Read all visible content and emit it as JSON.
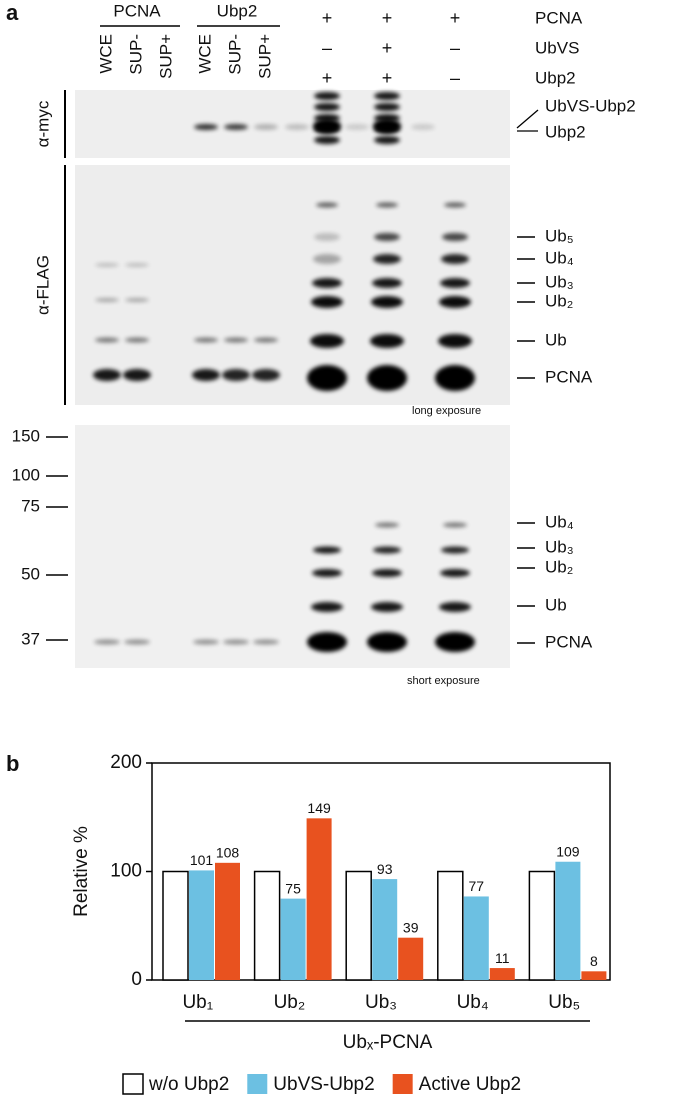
{
  "panel_a": {
    "label": "a",
    "group_headers": [
      "PCNA",
      "Ubp2"
    ],
    "lanes": [
      "WCE",
      "SUP-",
      "SUP+",
      "WCE",
      "SUP-",
      "SUP+"
    ],
    "conditions": [
      {
        "name": "PCNA",
        "marks": [
          "+",
          "+",
          "+"
        ]
      },
      {
        "name": "UbVS",
        "marks": [
          "–",
          "+",
          "–"
        ]
      },
      {
        "name": "Ubp2",
        "marks": [
          "+",
          "+",
          "–"
        ]
      }
    ],
    "antibodies": [
      "α-myc",
      "α-FLAG"
    ],
    "myc_bands": [
      "UbVS-Ubp2",
      "Ubp2"
    ],
    "long_bands": [
      "Ub₅",
      "Ub₄",
      "Ub₃",
      "Ub₂",
      "Ub",
      "PCNA"
    ],
    "long_note": "long exposure",
    "mw_markers": [
      150,
      100,
      75,
      50,
      37
    ],
    "short_bands": [
      "Ub₄",
      "Ub₃",
      "Ub₂",
      "Ub",
      "PCNA"
    ],
    "short_note": "short exposure"
  },
  "panel_b_label": "b",
  "chart_data": {
    "type": "bar",
    "categories": [
      "Ub₁",
      "Ub₂",
      "Ub₃",
      "Ub₄",
      "Ub₅"
    ],
    "series": [
      {
        "name": "w/o Ubp2",
        "color": "#ffffff",
        "values": [
          100,
          100,
          100,
          100,
          100
        ],
        "labels": false
      },
      {
        "name": "UbVS-Ubp2",
        "color": "#6cc0e2",
        "values": [
          101,
          75,
          93,
          77,
          109
        ],
        "labels": true
      },
      {
        "name": "Active Ubp2",
        "color": "#e8521f",
        "values": [
          108,
          149,
          39,
          11,
          8
        ],
        "labels": true
      }
    ],
    "ylabel": "Relative %",
    "xlabel": "Ubₓ-PCNA",
    "ylim": [
      0,
      200
    ],
    "yticks": [
      0,
      100,
      200
    ]
  }
}
